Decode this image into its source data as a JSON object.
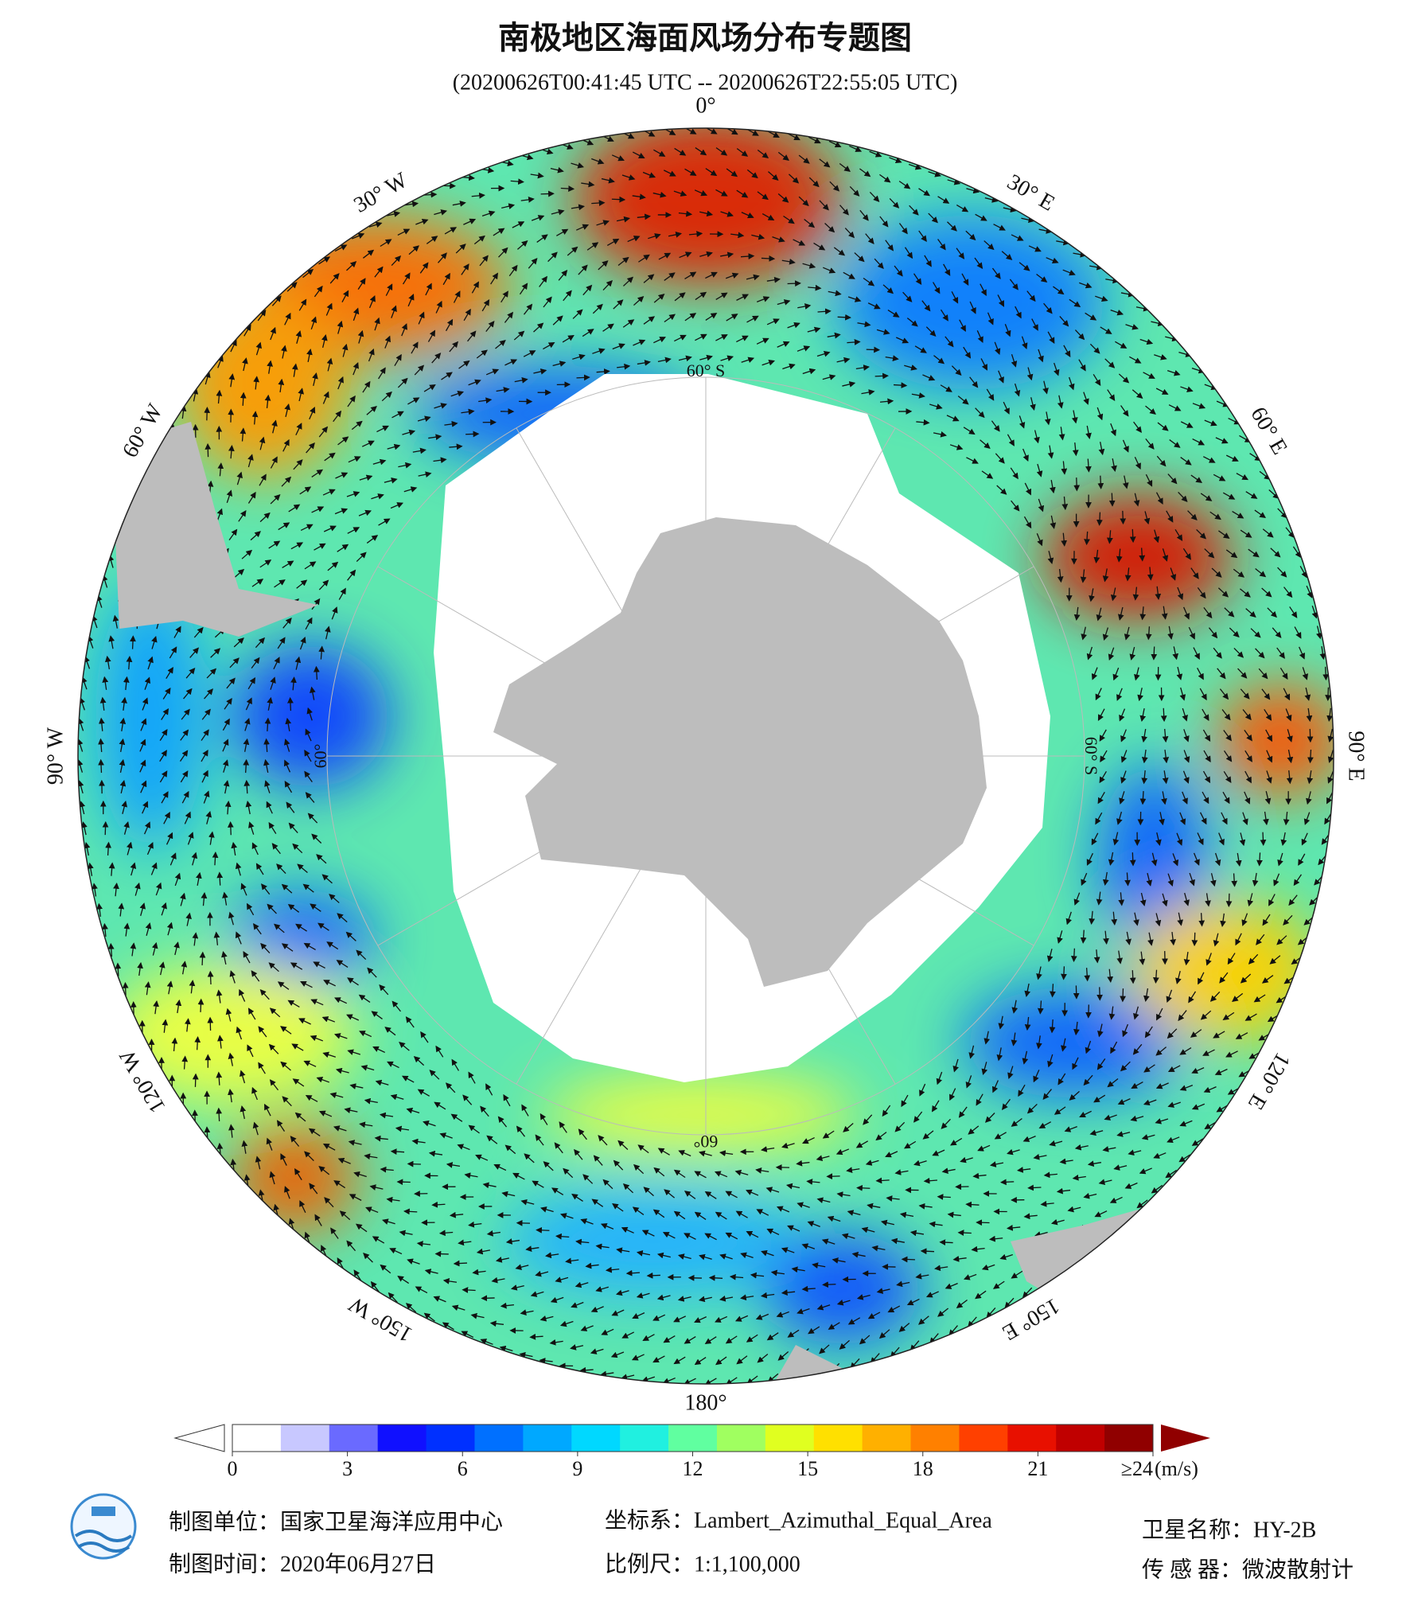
{
  "title": "南极地区海面风场分布专题图",
  "subtitle": "(20200626T00:41:45 UTC -- 20200626T22:55:05 UTC)",
  "map": {
    "longitude_labels": [
      {
        "lon": 0,
        "label": "0°"
      },
      {
        "lon": 30,
        "label": "30° E"
      },
      {
        "lon": 60,
        "label": "60° E"
      },
      {
        "lon": 90,
        "label": "90° E"
      },
      {
        "lon": 120,
        "label": "120° E"
      },
      {
        "lon": 150,
        "label": "150° E"
      },
      {
        "lon": 180,
        "label": "180°"
      },
      {
        "lon": -150,
        "label": "150° W"
      },
      {
        "lon": -120,
        "label": "120° W"
      },
      {
        "lon": -90,
        "label": "90° W"
      },
      {
        "lon": -60,
        "label": "60° W"
      },
      {
        "lon": -30,
        "label": "30° W"
      }
    ],
    "latitude_labels": [
      {
        "lon": 0,
        "label": "60° S"
      },
      {
        "lon": 90,
        "label": "60° S"
      },
      {
        "lon": 180,
        "label": "60°"
      },
      {
        "lon": -90,
        "label": "60°"
      }
    ]
  },
  "colorbar": {
    "lim": [
      0,
      24
    ],
    "ticks": [
      0,
      3,
      6,
      9,
      12,
      15,
      18,
      21,
      {
        "value": 24,
        "label": "≥24"
      }
    ],
    "unit": "(m/s)",
    "colors": [
      "#ffffff",
      "#c8c8ff",
      "#6a6aff",
      "#1010ff",
      "#0030ff",
      "#0070ff",
      "#00a8ff",
      "#00d8ff",
      "#20f0e0",
      "#60ffa0",
      "#a0ff60",
      "#e0ff20",
      "#ffe000",
      "#ffb000",
      "#ff8000",
      "#ff4000",
      "#e81000",
      "#c00000",
      "#900000"
    ]
  },
  "footer": {
    "unit": "制图单位：国家卫星海洋应用中心",
    "date": "制图时间：2020年06月27日",
    "crs": "坐标系：Lambert_Azimuthal_Equal_Area",
    "scale": "比例尺：1:1,100,000",
    "satellite": "卫星名称：HY-2B",
    "sensor": "传 感 器：微波散射计"
  }
}
